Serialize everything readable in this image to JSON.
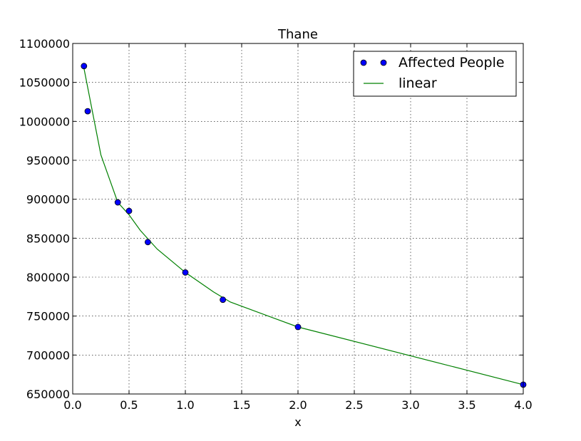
{
  "chart_data": {
    "type": "scatter",
    "title": "Thane",
    "xlabel": "x",
    "ylabel": "",
    "xlim": [
      0.0,
      4.0
    ],
    "ylim": [
      650000,
      1100000
    ],
    "xticks": [
      0.0,
      0.5,
      1.0,
      1.5,
      2.0,
      2.5,
      3.0,
      3.5,
      4.0
    ],
    "xtick_labels": [
      "0.0",
      "0.5",
      "1.0",
      "1.5",
      "2.0",
      "2.5",
      "3.0",
      "3.5",
      "4.0"
    ],
    "yticks": [
      650000,
      700000,
      750000,
      800000,
      850000,
      900000,
      950000,
      1000000,
      1050000,
      1100000
    ],
    "ytick_labels": [
      "650000",
      "700000",
      "750000",
      "800000",
      "850000",
      "900000",
      "950000",
      "1000000",
      "1050000",
      "1100000"
    ],
    "grid": true,
    "legend_position": "top-right",
    "series": [
      {
        "name": "Affected People",
        "kind": "scatter",
        "color": "#0000ff",
        "edge_color": "#000000",
        "x": [
          0.1,
          0.133,
          0.4,
          0.5,
          0.667,
          1.0,
          1.333,
          2.0,
          4.0
        ],
        "y": [
          1071000,
          1013000,
          896000,
          885000,
          845000,
          806000,
          771000,
          736000,
          662000
        ]
      },
      {
        "name": "linear",
        "kind": "line",
        "color": "#008000",
        "x": [
          0.1,
          0.25,
          0.4,
          0.5,
          0.6,
          0.75,
          1.0,
          1.25,
          1.4,
          2.0,
          4.0
        ],
        "y": [
          1068000,
          957000,
          896000,
          880000,
          860000,
          836000,
          806000,
          781000,
          768000,
          736000,
          662000
        ]
      }
    ]
  }
}
